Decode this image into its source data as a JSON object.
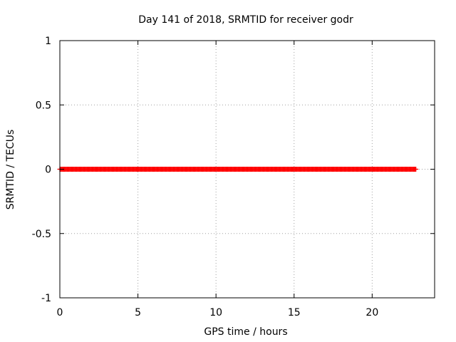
{
  "chart_data": {
    "type": "scatter",
    "title": "Day 141 of 2018, SRMTID for receiver godr",
    "xlabel": "GPS time / hours",
    "ylabel": "SRMTID / TECUs",
    "xlim": [
      0,
      24
    ],
    "ylim": [
      -1,
      1
    ],
    "grid": true,
    "xticks": [
      0,
      5,
      10,
      15,
      20
    ],
    "xtick_labels": [
      "0",
      "5",
      "10",
      "15",
      "20"
    ],
    "yticks": [
      -1,
      -0.5,
      0,
      0.5,
      1
    ],
    "ytick_labels": [
      "-1",
      "-0.5",
      "0",
      "0.5",
      "1"
    ],
    "series": [
      {
        "name": "SRMTID",
        "color": "#ff0000",
        "marker": "plus",
        "x_start": 0.0,
        "x_end": 22.8,
        "x_step": 0.05,
        "y_value": 0
      }
    ]
  }
}
